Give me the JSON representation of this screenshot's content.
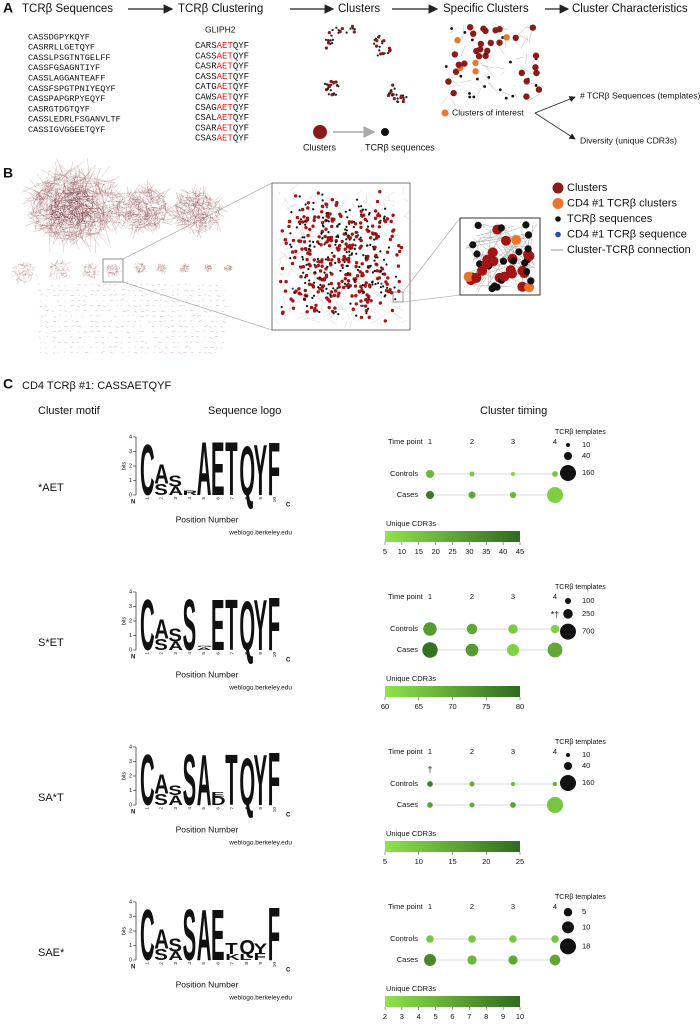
{
  "panel_a": {
    "label": "A",
    "steps": [
      "TCRβ Sequences",
      "TCRβ Clustering",
      "Clusters",
      "Specific Clusters",
      "Cluster Characteristics"
    ],
    "sequences": [
      "CASSDGPYKQYF",
      "CASRRLLGETQYF",
      "CASSLPSGTNTGELFF",
      "CASSFGSAGNTIYF",
      "CASSLAGGANTEAFF",
      "CASSFSPGTPNIYEQYF",
      "CASSPAPGRPYEQYF",
      "CASRGTDGTQYF",
      "CASSLEDRLFSGANVLTF",
      "CASSIGVGGEETQYF"
    ],
    "method": "GLIPH2",
    "clustered": [
      [
        "CARS",
        "AET",
        "QYF"
      ],
      [
        "CASS",
        "AET",
        "QYF"
      ],
      [
        "CASR",
        "AET",
        "QYF"
      ],
      [
        "CASS",
        "AET",
        "QYF"
      ],
      [
        "CATG",
        "AET",
        "QYF"
      ],
      [
        "CAWS",
        "AET",
        "QYF"
      ],
      [
        "CSAG",
        "AET",
        "QYF"
      ],
      [
        "CSAL",
        "AET",
        "QYF"
      ],
      [
        "CSAR",
        "AET",
        "QYF"
      ],
      [
        "CSAS",
        "AET",
        "QYF"
      ]
    ],
    "cluster_legend": [
      "Clusters",
      "TCRβ sequences"
    ],
    "interest_label": "Clusters of interest",
    "characteristics": [
      "# TCRβ Sequences (templates)",
      "Diversity (unique CDR3s)"
    ]
  },
  "panel_b": {
    "label": "B",
    "legend": [
      {
        "name": "Clusters",
        "color": "#8b1a1a",
        "shape": "big"
      },
      {
        "name": "CD4 #1 TCRβ clusters",
        "color": "#e8772e",
        "shape": "big"
      },
      {
        "name": "TCRβ sequences",
        "color": "#111111",
        "shape": "small"
      },
      {
        "name": "CD4 #1 TCRβ sequence",
        "color": "#1f4ea8",
        "shape": "small"
      },
      {
        "name": "Cluster-TCRβ connection",
        "color": "#bbbbbb",
        "shape": "line"
      }
    ]
  },
  "panel_c": {
    "label": "C",
    "title": "CD4 TCRβ #1: CASSAETQYF",
    "headers": [
      "Cluster motif",
      "Sequence logo",
      "Cluster timing"
    ],
    "letter_colors": {
      "C": "#62c22e",
      "S": "#62c22e",
      "T": "#62c22e",
      "Y": "#62c22e",
      "G": "#62c22e",
      "A": "#111111",
      "F": "#111111",
      "L": "#111111",
      "E": "#d42020",
      "D": "#d42020",
      "Q": "#c21bc2",
      "K": "#2a3fc0",
      "R": "#2a3fc0"
    },
    "rows": [
      {
        "motif": "*AET",
        "logo": {
          "ylabel": "bits",
          "ylim": [
            0,
            4
          ],
          "yticks": [
            0,
            1,
            2,
            3,
            4
          ],
          "positions": [
            1,
            2,
            3,
            4,
            5,
            6,
            7,
            8,
            9,
            10
          ],
          "start": "N",
          "end": "C",
          "xlabel": "Position Number",
          "credit": "weblogo.berkeley.edu",
          "stacks": [
            [
              {
                "letter": "C",
                "bits": 3.6
              }
            ],
            [
              {
                "letter": "A",
                "bits": 2.2
              },
              {
                "letter": "S",
                "bits": 0.8
              }
            ],
            [
              {
                "letter": "S",
                "bits": 1.4
              },
              {
                "letter": "A",
                "bits": 0.6
              }
            ],
            [
              {
                "letter": "S",
                "bits": 0.3
              },
              {
                "letter": "R",
                "bits": 0.3
              }
            ],
            [
              {
                "letter": "A",
                "bits": 3.8
              }
            ],
            [
              {
                "letter": "E",
                "bits": 3.8
              }
            ],
            [
              {
                "letter": "T",
                "bits": 3.8
              }
            ],
            [
              {
                "letter": "Q",
                "bits": 3.5
              }
            ],
            [
              {
                "letter": "Y",
                "bits": 3.6
              }
            ],
            [
              {
                "letter": "F",
                "bits": 3.8
              }
            ]
          ]
        },
        "timing": {
          "time_label": "Time point",
          "time_points": [
            1,
            2,
            3,
            4
          ],
          "groups": [
            {
              "name": "Controls",
              "templates": [
                40,
                15,
                10,
                20
              ],
              "unique_cdr3s": [
                20,
                15,
                10,
                15
              ]
            },
            {
              "name": "Cases",
              "templates": [
                40,
                30,
                25,
                160
              ],
              "unique_cdr3s": [
                40,
                25,
                20,
                12
              ]
            }
          ],
          "size_legend": {
            "title": "TCRβ templates",
            "values": [
              10,
              40,
              160
            ]
          },
          "color_bar": {
            "title": "Unique CDR3s",
            "lim": [
              5,
              45
            ],
            "ticks": [
              5,
              10,
              15,
              20,
              25,
              30,
              35,
              40,
              45
            ],
            "colors": [
              "#90e34c",
              "#2f6b1f"
            ]
          },
          "annotations": []
        }
      },
      {
        "motif": "S*ET",
        "logo": {
          "ylabel": "bits",
          "ylim": [
            0,
            4
          ],
          "yticks": [
            0,
            1,
            2,
            3,
            4
          ],
          "positions": [
            1,
            2,
            3,
            4,
            5,
            6,
            7,
            8,
            9,
            10
          ],
          "start": "N",
          "end": "C",
          "xlabel": "Position Number",
          "credit": "weblogo.berkeley.edu",
          "stacks": [
            [
              {
                "letter": "C",
                "bits": 3.6
              }
            ],
            [
              {
                "letter": "A",
                "bits": 2.2
              },
              {
                "letter": "S",
                "bits": 0.8
              }
            ],
            [
              {
                "letter": "S",
                "bits": 1.5
              },
              {
                "letter": "A",
                "bits": 0.6
              }
            ],
            [
              {
                "letter": "S",
                "bits": 3.6
              }
            ],
            [
              {
                "letter": "G",
                "bits": 0.3
              },
              {
                "letter": "S",
                "bits": 0.2
              },
              {
                "letter": "A",
                "bits": 0.2
              }
            ],
            [
              {
                "letter": "E",
                "bits": 3.6
              }
            ],
            [
              {
                "letter": "T",
                "bits": 3.6
              }
            ],
            [
              {
                "letter": "Q",
                "bits": 3.5
              }
            ],
            [
              {
                "letter": "Y",
                "bits": 3.6
              }
            ],
            [
              {
                "letter": "F",
                "bits": 3.8
              }
            ]
          ]
        },
        "timing": {
          "time_label": "Time point",
          "time_points": [
            1,
            2,
            3,
            4
          ],
          "groups": [
            {
              "name": "Controls",
              "templates": [
                500,
                300,
                250,
                200
              ],
              "unique_cdr3s": [
                72,
                70,
                64,
                63
              ]
            },
            {
              "name": "Cases",
              "templates": [
                650,
                450,
                400,
                600
              ],
              "unique_cdr3s": [
                79,
                72,
                63,
                70
              ]
            }
          ],
          "size_legend": {
            "title": "TCRβ templates",
            "values": [
              100,
              250,
              700
            ]
          },
          "color_bar": {
            "title": "Unique CDR3s",
            "lim": [
              60,
              80
            ],
            "ticks": [
              60,
              65,
              70,
              75,
              80
            ],
            "colors": [
              "#90e34c",
              "#2f6b1f"
            ]
          },
          "annotations": [
            {
              "text": "*†",
              "at": 4
            }
          ]
        }
      },
      {
        "motif": "SA*T",
        "logo": {
          "ylabel": "bits",
          "ylim": [
            0,
            4
          ],
          "yticks": [
            0,
            1,
            2,
            3,
            4
          ],
          "positions": [
            1,
            2,
            3,
            4,
            5,
            6,
            7,
            8,
            9,
            10
          ],
          "start": "N",
          "end": "C",
          "xlabel": "Position Number",
          "credit": "weblogo.berkeley.edu",
          "stacks": [
            [
              {
                "letter": "C",
                "bits": 3.6
              }
            ],
            [
              {
                "letter": "A",
                "bits": 2.2
              },
              {
                "letter": "S",
                "bits": 0.8
              }
            ],
            [
              {
                "letter": "S",
                "bits": 1.4
              },
              {
                "letter": "A",
                "bits": 0.7
              }
            ],
            [
              {
                "letter": "S",
                "bits": 3.6
              }
            ],
            [
              {
                "letter": "A",
                "bits": 3.6
              }
            ],
            [
              {
                "letter": "E",
                "bits": 0.9
              },
              {
                "letter": "D",
                "bits": 0.6
              }
            ],
            [
              {
                "letter": "T",
                "bits": 3.6
              }
            ],
            [
              {
                "letter": "Q",
                "bits": 3.3
              }
            ],
            [
              {
                "letter": "Y",
                "bits": 3.6
              }
            ],
            [
              {
                "letter": "F",
                "bits": 3.8
              }
            ]
          ]
        },
        "timing": {
          "time_label": "Time point",
          "time_points": [
            1,
            2,
            3,
            4
          ],
          "groups": [
            {
              "name": "Controls",
              "templates": [
                20,
                15,
                10,
                10
              ],
              "unique_cdr3s": [
                22,
                15,
                12,
                14
              ]
            },
            {
              "name": "Cases",
              "templates": [
                20,
                15,
                20,
                160
              ],
              "unique_cdr3s": [
                16,
                15,
                16,
                10
              ]
            }
          ],
          "size_legend": {
            "title": "TCRβ templates",
            "values": [
              10,
              40,
              160
            ]
          },
          "color_bar": {
            "title": "Unique CDR3s",
            "lim": [
              5,
              25
            ],
            "ticks": [
              5,
              10,
              15,
              20,
              25
            ],
            "colors": [
              "#90e34c",
              "#2f6b1f"
            ]
          },
          "annotations": [
            {
              "text": "†",
              "at": 1
            }
          ]
        }
      },
      {
        "motif": "SAE*",
        "logo": {
          "ylabel": "bits",
          "ylim": [
            0,
            4
          ],
          "yticks": [
            0,
            1,
            2,
            3,
            4
          ],
          "positions": [
            1,
            2,
            3,
            4,
            5,
            6,
            7,
            8,
            9,
            10
          ],
          "start": "N",
          "end": "C",
          "xlabel": "Position Number",
          "credit": "weblogo.berkeley.edu",
          "stacks": [
            [
              {
                "letter": "C",
                "bits": 3.6
              }
            ],
            [
              {
                "letter": "A",
                "bits": 2.2
              },
              {
                "letter": "S",
                "bits": 0.8
              }
            ],
            [
              {
                "letter": "S",
                "bits": 1.5
              },
              {
                "letter": "A",
                "bits": 0.6
              }
            ],
            [
              {
                "letter": "S",
                "bits": 3.6
              }
            ],
            [
              {
                "letter": "A",
                "bits": 3.6
              }
            ],
            [
              {
                "letter": "E",
                "bits": 3.6
              }
            ],
            [
              {
                "letter": "T",
                "bits": 1.2
              },
              {
                "letter": "K",
                "bits": 0.4
              }
            ],
            [
              {
                "letter": "Q",
                "bits": 1.4
              },
              {
                "letter": "L",
                "bits": 0.4
              }
            ],
            [
              {
                "letter": "Y",
                "bits": 1.2
              },
              {
                "letter": "F",
                "bits": 0.5
              }
            ],
            [
              {
                "letter": "F",
                "bits": 3.8
              }
            ]
          ]
        },
        "timing": {
          "time_label": "Time point",
          "time_points": [
            1,
            2,
            3,
            4
          ],
          "groups": [
            {
              "name": "Controls",
              "templates": [
                4,
                4,
                4,
                4
              ],
              "unique_cdr3s": [
                4,
                4,
                4,
                4
              ]
            },
            {
              "name": "Cases",
              "templates": [
                10,
                6,
                6,
                8
              ],
              "unique_cdr3s": [
                8,
                5,
                6,
                6
              ]
            }
          ],
          "size_legend": {
            "title": "TCRβ templates",
            "values": [
              5,
              10,
              18
            ]
          },
          "color_bar": {
            "title": "Unique CDR3s",
            "lim": [
              2,
              10
            ],
            "ticks": [
              2,
              3,
              4,
              5,
              6,
              7,
              8,
              9,
              10
            ],
            "colors": [
              "#90e34c",
              "#2f6b1f"
            ]
          },
          "annotations": []
        }
      }
    ]
  }
}
